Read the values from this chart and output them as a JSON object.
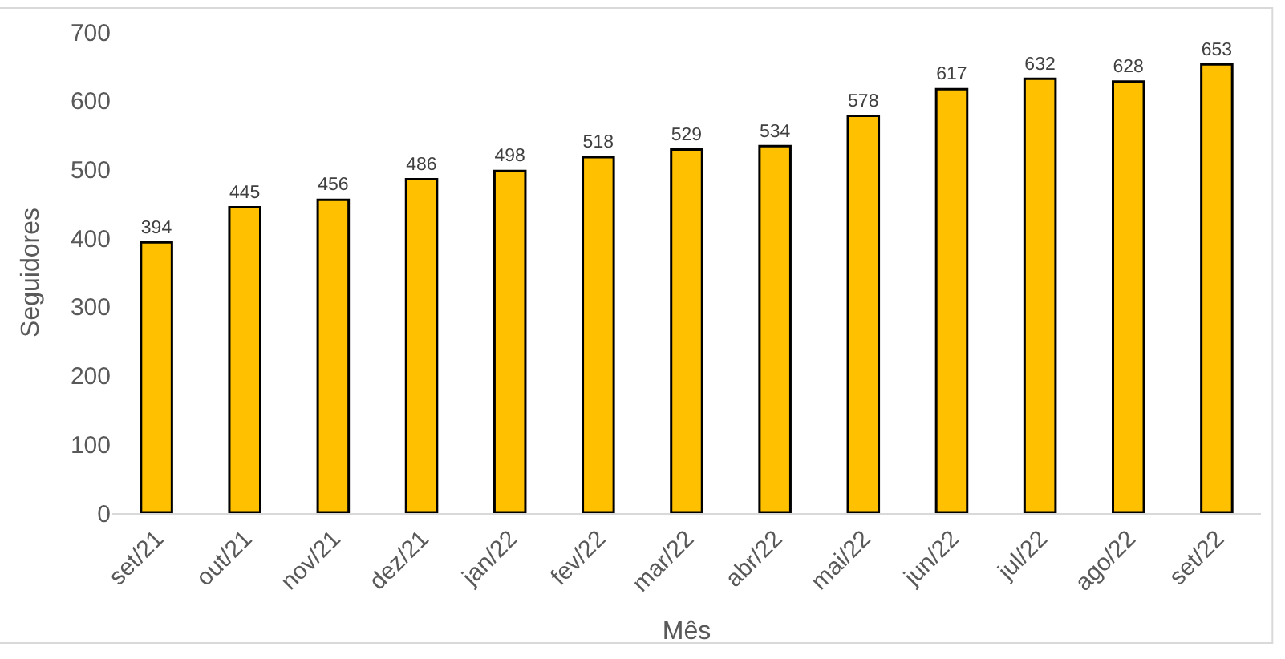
{
  "chart_data": {
    "type": "bar",
    "xlabel": "Mês",
    "ylabel": "Seguidores",
    "categories": [
      "set/21",
      "out/21",
      "nov/21",
      "dez/21",
      "jan/22",
      "fev/22",
      "mar/22",
      "abr/22",
      "mai/22",
      "jun/22",
      "jul/22",
      "ago/22",
      "set/22"
    ],
    "values": [
      394,
      445,
      456,
      486,
      498,
      518,
      529,
      534,
      578,
      617,
      632,
      628,
      653
    ],
    "color": "#ffc000",
    "ylim": [
      0,
      700
    ],
    "yticks": [
      0,
      100,
      200,
      300,
      400,
      500,
      600,
      700
    ],
    "data_labels": true,
    "grid": false,
    "legend": false
  }
}
